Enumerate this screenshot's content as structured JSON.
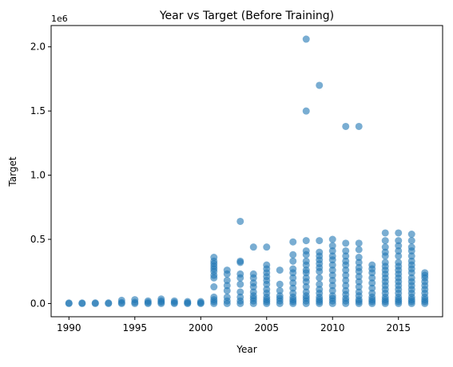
{
  "chart_data": {
    "type": "scatter",
    "title": "Year vs Target (Before Training)",
    "xlabel": "Year",
    "ylabel": "Target",
    "y_offset_label": "1e6",
    "xlim": [
      1988.65,
      2018.35
    ],
    "ylim": [
      -103000,
      2166000
    ],
    "x_ticks": [
      1990,
      1995,
      2000,
      2005,
      2010,
      2015
    ],
    "x_tick_labels": [
      "1990",
      "1995",
      "2000",
      "2005",
      "2010",
      "2015"
    ],
    "y_ticks": [
      0,
      500000,
      1000000,
      1500000,
      2000000
    ],
    "y_tick_labels": [
      "0.0",
      "0.5",
      "1.0",
      "1.5",
      "2.0"
    ],
    "grid": false,
    "legend": "none",
    "marker_color": "#1f77b4",
    "marker_opacity": 0.6,
    "series": [
      {
        "points": [
          [
            1990,
            0
          ],
          [
            1990,
            4000
          ],
          [
            1991,
            0
          ],
          [
            1991,
            4000
          ],
          [
            1992,
            0
          ],
          [
            1992,
            5000
          ],
          [
            1993,
            0
          ],
          [
            1993,
            5000
          ],
          [
            1994,
            0
          ],
          [
            1994,
            8000
          ],
          [
            1994,
            25000
          ],
          [
            1995,
            0
          ],
          [
            1995,
            10000
          ],
          [
            1995,
            30000
          ],
          [
            1996,
            0
          ],
          [
            1996,
            8000
          ],
          [
            1996,
            20000
          ],
          [
            1997,
            0
          ],
          [
            1997,
            10000
          ],
          [
            1997,
            20000
          ],
          [
            1997,
            35000
          ],
          [
            1998,
            0
          ],
          [
            1998,
            8000
          ],
          [
            1998,
            20000
          ],
          [
            1999,
            0
          ],
          [
            1999,
            5000
          ],
          [
            1999,
            15000
          ],
          [
            2000,
            0
          ],
          [
            2000,
            5000
          ],
          [
            2000,
            15000
          ],
          [
            2001,
            0
          ],
          [
            2001,
            15000
          ],
          [
            2001,
            30000
          ],
          [
            2001,
            50000
          ],
          [
            2001,
            130000
          ],
          [
            2001,
            200000
          ],
          [
            2001,
            220000
          ],
          [
            2001,
            250000
          ],
          [
            2001,
            270000
          ],
          [
            2001,
            290000
          ],
          [
            2001,
            310000
          ],
          [
            2001,
            330000
          ],
          [
            2001,
            360000
          ],
          [
            2002,
            0
          ],
          [
            2002,
            20000
          ],
          [
            2002,
            50000
          ],
          [
            2002,
            100000
          ],
          [
            2002,
            140000
          ],
          [
            2002,
            180000
          ],
          [
            2002,
            230000
          ],
          [
            2002,
            260000
          ],
          [
            2003,
            0
          ],
          [
            2003,
            20000
          ],
          [
            2003,
            50000
          ],
          [
            2003,
            90000
          ],
          [
            2003,
            150000
          ],
          [
            2003,
            200000
          ],
          [
            2003,
            230000
          ],
          [
            2003,
            320000
          ],
          [
            2003,
            330000
          ],
          [
            2003,
            640000
          ],
          [
            2004,
            0
          ],
          [
            2004,
            20000
          ],
          [
            2004,
            40000
          ],
          [
            2004,
            60000
          ],
          [
            2004,
            90000
          ],
          [
            2004,
            130000
          ],
          [
            2004,
            160000
          ],
          [
            2004,
            200000
          ],
          [
            2004,
            230000
          ],
          [
            2004,
            440000
          ],
          [
            2005,
            0
          ],
          [
            2005,
            15000
          ],
          [
            2005,
            30000
          ],
          [
            2005,
            50000
          ],
          [
            2005,
            80000
          ],
          [
            2005,
            110000
          ],
          [
            2005,
            150000
          ],
          [
            2005,
            180000
          ],
          [
            2005,
            210000
          ],
          [
            2005,
            240000
          ],
          [
            2005,
            270000
          ],
          [
            2005,
            300000
          ],
          [
            2005,
            440000
          ],
          [
            2006,
            0
          ],
          [
            2006,
            20000
          ],
          [
            2006,
            40000
          ],
          [
            2006,
            60000
          ],
          [
            2006,
            100000
          ],
          [
            2006,
            150000
          ],
          [
            2006,
            260000
          ],
          [
            2007,
            0
          ],
          [
            2007,
            15000
          ],
          [
            2007,
            30000
          ],
          [
            2007,
            50000
          ],
          [
            2007,
            80000
          ],
          [
            2007,
            120000
          ],
          [
            2007,
            160000
          ],
          [
            2007,
            200000
          ],
          [
            2007,
            240000
          ],
          [
            2007,
            270000
          ],
          [
            2007,
            330000
          ],
          [
            2007,
            380000
          ],
          [
            2007,
            480000
          ],
          [
            2008,
            0
          ],
          [
            2008,
            20000
          ],
          [
            2008,
            40000
          ],
          [
            2008,
            60000
          ],
          [
            2008,
            90000
          ],
          [
            2008,
            130000
          ],
          [
            2008,
            170000
          ],
          [
            2008,
            200000
          ],
          [
            2008,
            240000
          ],
          [
            2008,
            260000
          ],
          [
            2008,
            300000
          ],
          [
            2008,
            330000
          ],
          [
            2008,
            380000
          ],
          [
            2008,
            410000
          ],
          [
            2008,
            490000
          ],
          [
            2008,
            1500000
          ],
          [
            2008,
            2060000
          ],
          [
            2009,
            0
          ],
          [
            2009,
            15000
          ],
          [
            2009,
            30000
          ],
          [
            2009,
            50000
          ],
          [
            2009,
            80000
          ],
          [
            2009,
            110000
          ],
          [
            2009,
            150000
          ],
          [
            2009,
            200000
          ],
          [
            2009,
            250000
          ],
          [
            2009,
            280000
          ],
          [
            2009,
            310000
          ],
          [
            2009,
            340000
          ],
          [
            2009,
            370000
          ],
          [
            2009,
            400000
          ],
          [
            2009,
            490000
          ],
          [
            2009,
            1700000
          ],
          [
            2010,
            0
          ],
          [
            2010,
            20000
          ],
          [
            2010,
            40000
          ],
          [
            2010,
            60000
          ],
          [
            2010,
            100000
          ],
          [
            2010,
            140000
          ],
          [
            2010,
            180000
          ],
          [
            2010,
            220000
          ],
          [
            2010,
            260000
          ],
          [
            2010,
            300000
          ],
          [
            2010,
            340000
          ],
          [
            2010,
            370000
          ],
          [
            2010,
            410000
          ],
          [
            2010,
            450000
          ],
          [
            2010,
            500000
          ],
          [
            2011,
            0
          ],
          [
            2011,
            20000
          ],
          [
            2011,
            40000
          ],
          [
            2011,
            70000
          ],
          [
            2011,
            100000
          ],
          [
            2011,
            140000
          ],
          [
            2011,
            180000
          ],
          [
            2011,
            220000
          ],
          [
            2011,
            260000
          ],
          [
            2011,
            300000
          ],
          [
            2011,
            330000
          ],
          [
            2011,
            370000
          ],
          [
            2011,
            410000
          ],
          [
            2011,
            470000
          ],
          [
            2011,
            1380000
          ],
          [
            2012,
            0
          ],
          [
            2012,
            15000
          ],
          [
            2012,
            30000
          ],
          [
            2012,
            60000
          ],
          [
            2012,
            90000
          ],
          [
            2012,
            130000
          ],
          [
            2012,
            170000
          ],
          [
            2012,
            210000
          ],
          [
            2012,
            250000
          ],
          [
            2012,
            280000
          ],
          [
            2012,
            320000
          ],
          [
            2012,
            360000
          ],
          [
            2012,
            420000
          ],
          [
            2012,
            470000
          ],
          [
            2012,
            1380000
          ],
          [
            2013,
            0
          ],
          [
            2013,
            15000
          ],
          [
            2013,
            30000
          ],
          [
            2013,
            50000
          ],
          [
            2013,
            80000
          ],
          [
            2013,
            120000
          ],
          [
            2013,
            160000
          ],
          [
            2013,
            200000
          ],
          [
            2013,
            240000
          ],
          [
            2013,
            270000
          ],
          [
            2013,
            300000
          ],
          [
            2014,
            0
          ],
          [
            2014,
            15000
          ],
          [
            2014,
            30000
          ],
          [
            2014,
            50000
          ],
          [
            2014,
            80000
          ],
          [
            2014,
            110000
          ],
          [
            2014,
            140000
          ],
          [
            2014,
            170000
          ],
          [
            2014,
            200000
          ],
          [
            2014,
            230000
          ],
          [
            2014,
            260000
          ],
          [
            2014,
            290000
          ],
          [
            2014,
            320000
          ],
          [
            2014,
            370000
          ],
          [
            2014,
            400000
          ],
          [
            2014,
            440000
          ],
          [
            2014,
            490000
          ],
          [
            2014,
            550000
          ],
          [
            2015,
            0
          ],
          [
            2015,
            15000
          ],
          [
            2015,
            30000
          ],
          [
            2015,
            50000
          ],
          [
            2015,
            80000
          ],
          [
            2015,
            110000
          ],
          [
            2015,
            140000
          ],
          [
            2015,
            170000
          ],
          [
            2015,
            200000
          ],
          [
            2015,
            230000
          ],
          [
            2015,
            260000
          ],
          [
            2015,
            290000
          ],
          [
            2015,
            320000
          ],
          [
            2015,
            370000
          ],
          [
            2015,
            410000
          ],
          [
            2015,
            450000
          ],
          [
            2015,
            490000
          ],
          [
            2015,
            550000
          ],
          [
            2016,
            0
          ],
          [
            2016,
            15000
          ],
          [
            2016,
            30000
          ],
          [
            2016,
            50000
          ],
          [
            2016,
            80000
          ],
          [
            2016,
            110000
          ],
          [
            2016,
            140000
          ],
          [
            2016,
            170000
          ],
          [
            2016,
            200000
          ],
          [
            2016,
            240000
          ],
          [
            2016,
            270000
          ],
          [
            2016,
            300000
          ],
          [
            2016,
            330000
          ],
          [
            2016,
            370000
          ],
          [
            2016,
            410000
          ],
          [
            2016,
            440000
          ],
          [
            2016,
            490000
          ],
          [
            2016,
            540000
          ],
          [
            2017,
            0
          ],
          [
            2017,
            15000
          ],
          [
            2017,
            30000
          ],
          [
            2017,
            50000
          ],
          [
            2017,
            80000
          ],
          [
            2017,
            110000
          ],
          [
            2017,
            140000
          ],
          [
            2017,
            170000
          ],
          [
            2017,
            200000
          ],
          [
            2017,
            220000
          ],
          [
            2017,
            240000
          ]
        ]
      }
    ]
  }
}
